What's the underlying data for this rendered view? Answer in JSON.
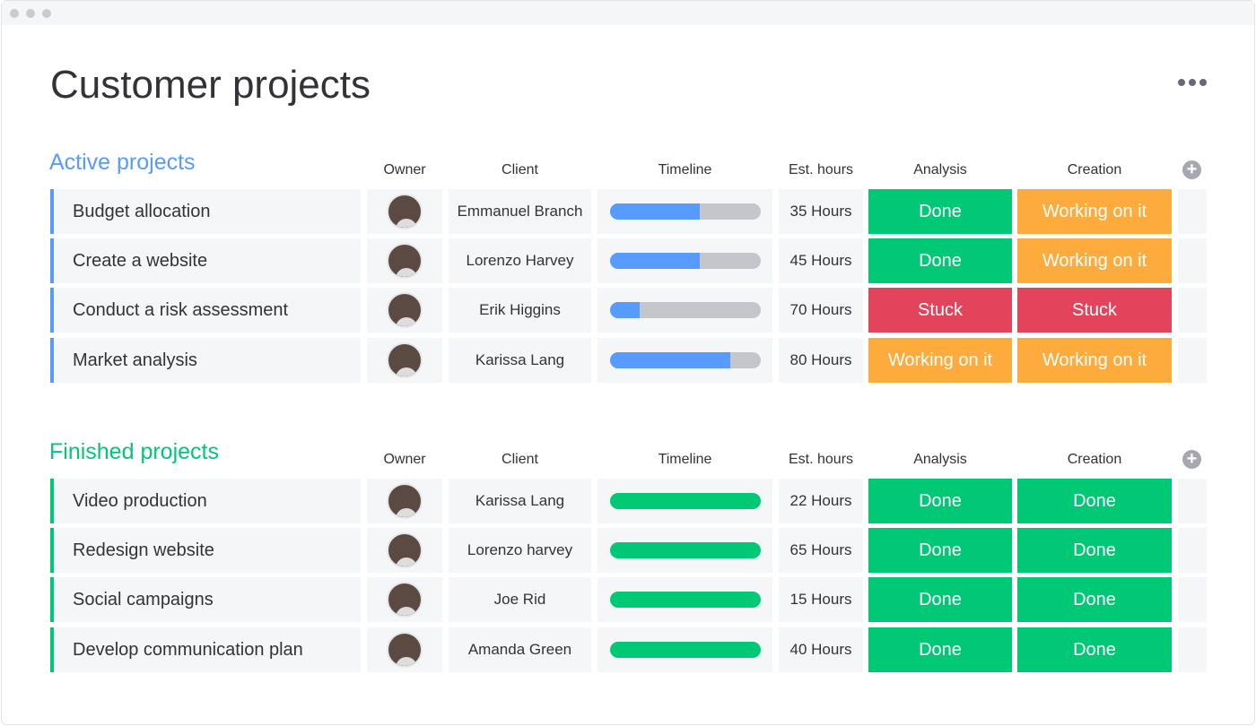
{
  "page": {
    "title": "Customer projects"
  },
  "colors": {
    "active": "#579bfc",
    "finished": "#00c875",
    "done": "#00c875",
    "working": "#fdab3d",
    "stuck": "#e2445c",
    "bar_track": "#c4c6cc"
  },
  "columns": {
    "owner": "Owner",
    "client": "Client",
    "timeline": "Timeline",
    "hours": "Est. hours",
    "analysis": "Analysis",
    "creation": "Creation"
  },
  "groups": [
    {
      "title": "Active projects",
      "color": "#579bfc",
      "rows": [
        {
          "name": "Budget allocation",
          "owner": "avatar",
          "client": "Emmanuel Branch",
          "timeline_progress": 0.6,
          "hours": "35 Hours",
          "analysis": "Done",
          "creation": "Working on it"
        },
        {
          "name": "Create a website",
          "owner": "avatar",
          "client": "Lorenzo Harvey",
          "timeline_progress": 0.6,
          "hours": "45 Hours",
          "analysis": "Done",
          "creation": "Working on it"
        },
        {
          "name": "Conduct a risk assessment",
          "owner": "avatar",
          "client": "Erik Higgins",
          "timeline_progress": 0.2,
          "hours": "70 Hours",
          "analysis": "Stuck",
          "creation": "Stuck"
        },
        {
          "name": "Market analysis",
          "owner": "avatar",
          "client": "Karissa Lang",
          "timeline_progress": 0.8,
          "hours": "80 Hours",
          "analysis": "Working on it",
          "creation": "Working on it"
        }
      ]
    },
    {
      "title": "Finished projects",
      "color": "#00c875",
      "rows": [
        {
          "name": "Video production",
          "owner": "avatar",
          "client": "Karissa Lang",
          "timeline_progress": 1.0,
          "hours": "22 Hours",
          "analysis": "Done",
          "creation": "Done"
        },
        {
          "name": "Redesign website",
          "owner": "avatar",
          "client": "Lorenzo harvey",
          "timeline_progress": 1.0,
          "hours": "65 Hours",
          "analysis": "Done",
          "creation": "Done"
        },
        {
          "name": "Social campaigns",
          "owner": "avatar",
          "client": "Joe Rid",
          "timeline_progress": 1.0,
          "hours": "15 Hours",
          "analysis": "Done",
          "creation": "Done"
        },
        {
          "name": "Develop communication plan",
          "owner": "avatar",
          "client": "Amanda Green",
          "timeline_progress": 1.0,
          "hours": "40 Hours",
          "analysis": "Done",
          "creation": "Done"
        }
      ]
    }
  ]
}
